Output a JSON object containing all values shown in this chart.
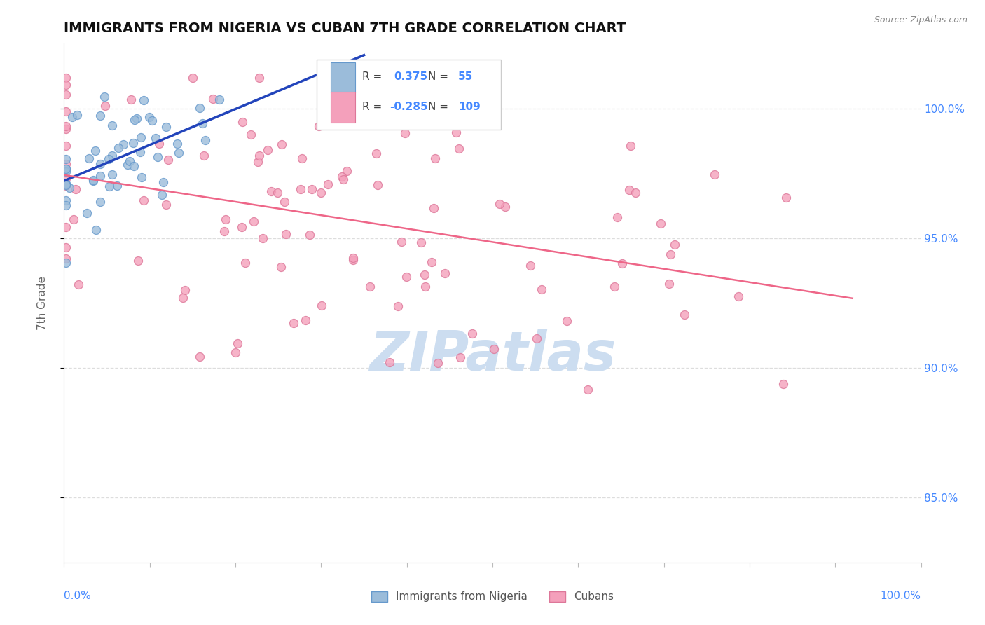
{
  "title": "IMMIGRANTS FROM NIGERIA VS CUBAN 7TH GRADE CORRELATION CHART",
  "source_text": "Source: ZipAtlas.com",
  "ylabel": "7th Grade",
  "xmin": 0.0,
  "xmax": 100.0,
  "ymin": 82.5,
  "ymax": 102.5,
  "yticks": [
    85.0,
    90.0,
    95.0,
    100.0
  ],
  "ytick_labels": [
    "85.0%",
    "90.0%",
    "95.0%",
    "100.0%"
  ],
  "nigeria_color": "#9bbcda",
  "nigeria_edge": "#6699cc",
  "cuba_color": "#f4a0bb",
  "cuba_edge": "#dd7799",
  "nigeria_line_color": "#2244bb",
  "cuba_line_color": "#ee6688",
  "marker_size": 75,
  "nigeria_R": 0.375,
  "nigeria_N": 55,
  "cuba_R": -0.285,
  "cuba_N": 109,
  "watermark": "ZIPatlas",
  "watermark_color": "#ccddf0",
  "background_color": "#ffffff",
  "title_color": "#111111",
  "axis_label_color": "#4488ff",
  "grid_color": "#dddddd",
  "grid_style": "--"
}
